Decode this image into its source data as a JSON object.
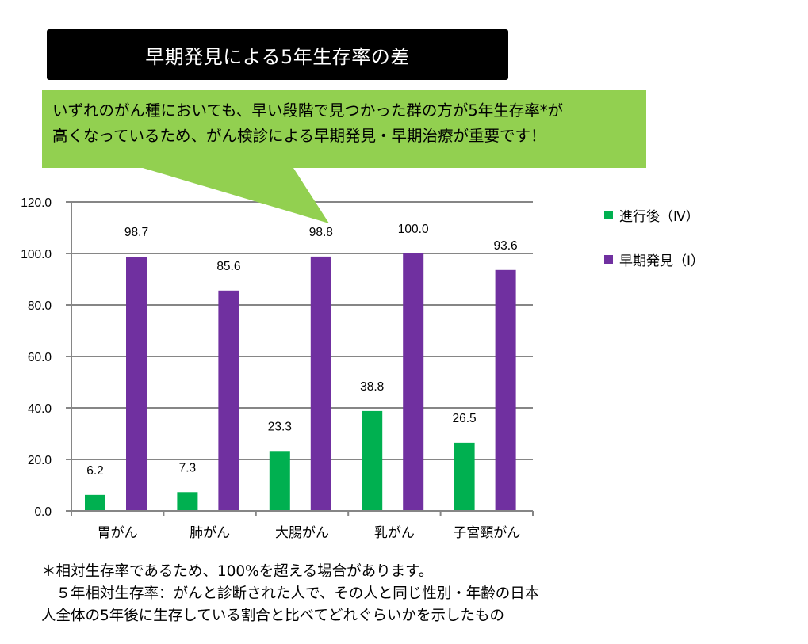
{
  "title": "早期発見による5年生存率の差",
  "callout": {
    "line1": "いずれのがん種においても、早い段階で見つかった群の方が5年生存率*が",
    "line2": "高くなっているため、がん検診による早期発見・早期治療が重要です！",
    "color": "#92D050"
  },
  "legend": {
    "items": [
      {
        "label": "進行後（Ⅳ）",
        "color": "#00B050"
      },
      {
        "label": "早期発見（Ⅰ）",
        "color": "#7030A0"
      }
    ]
  },
  "footnote": {
    "line1": "＊相対生存率であるため、100%を超える場合があります。",
    "line2": "　５年相対生存率：がんと診断された人で、その人と同じ性別・年齢の日本",
    "line3": "人全体の5年後に生存している割合と比べてどれぐらいかを示したもの"
  },
  "chart_data": {
    "type": "bar",
    "title": "早期発見による5年生存率の差",
    "xlabel": "",
    "ylabel": "",
    "categories": [
      "胃がん",
      "肺がん",
      "大腸がん",
      "乳がん",
      "子宮頸がん"
    ],
    "series": [
      {
        "name": "進行後（Ⅳ）",
        "color": "#00B050",
        "values": [
          6.2,
          7.3,
          23.3,
          38.8,
          26.5
        ]
      },
      {
        "name": "早期発見（Ⅰ）",
        "color": "#7030A0",
        "values": [
          98.7,
          85.6,
          98.8,
          100.0,
          93.6
        ]
      }
    ],
    "ylim": [
      0,
      120
    ],
    "yticks": [
      "0.0",
      "20.0",
      "40.0",
      "60.0",
      "80.0",
      "100.0",
      "120.0"
    ],
    "grid": true,
    "legend_position": "right",
    "data_labels": true
  }
}
